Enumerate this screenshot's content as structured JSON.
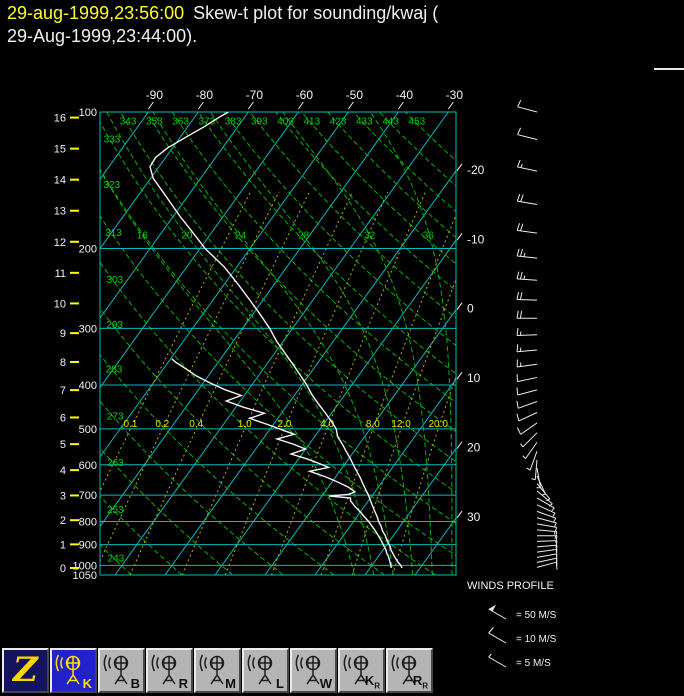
{
  "header": {
    "datetime_primary": "29-aug-1999,23:56:00",
    "datetime_color": "#ffff2e",
    "title_rest": "Skew-t plot for sounding/kwaj (",
    "title_line2": "29-Aug-1999,23:44:00)."
  },
  "chart_data": {
    "type": "skewt",
    "station": "kwaj",
    "pressure_range": [
      100,
      1050
    ],
    "pressure_levels_hpa": [
      100,
      200,
      300,
      400,
      500,
      600,
      700,
      800,
      900,
      1000,
      1050
    ],
    "km_ticks": [
      0,
      1,
      2,
      3,
      4,
      5,
      6,
      7,
      8,
      9,
      10,
      11,
      12,
      13,
      14,
      15,
      16
    ],
    "isotherms_c": [
      -90,
      -80,
      -70,
      -60,
      -50,
      -40,
      -30,
      -20,
      -10,
      0,
      10,
      20,
      30
    ],
    "dry_adiabats_k": [
      243,
      253,
      263,
      273,
      283,
      293,
      303,
      313,
      323,
      333,
      343,
      353,
      363,
      373,
      383,
      393,
      403,
      413,
      423,
      433,
      443,
      453
    ],
    "moist_adiabats_c": [
      16,
      20,
      24,
      28,
      32,
      36
    ],
    "mixing_ratio_gkg": [
      "0.1",
      "0.2",
      "0.4",
      "1.0",
      "2.0",
      "4.0",
      "8.0",
      "12.0",
      "20.0"
    ],
    "temperature_profile": [
      [
        1013,
        26.4
      ],
      [
        1000,
        25.8
      ],
      [
        985,
        24.8
      ],
      [
        970,
        24.0
      ],
      [
        955,
        23.2
      ],
      [
        940,
        22.4
      ],
      [
        925,
        21.6
      ],
      [
        910,
        21.0
      ],
      [
        895,
        20.2
      ],
      [
        880,
        19.4
      ],
      [
        860,
        18.4
      ],
      [
        840,
        17.2
      ],
      [
        820,
        16.2
      ],
      [
        800,
        15.0
      ],
      [
        780,
        14.0
      ],
      [
        760,
        12.8
      ],
      [
        740,
        11.6
      ],
      [
        720,
        10.4
      ],
      [
        700,
        9.2
      ],
      [
        680,
        7.8
      ],
      [
        660,
        6.4
      ],
      [
        640,
        5.0
      ],
      [
        620,
        3.4
      ],
      [
        600,
        1.8
      ],
      [
        580,
        0.2
      ],
      [
        560,
        -1.6
      ],
      [
        540,
        -3.4
      ],
      [
        520,
        -5.4
      ],
      [
        500,
        -6.8
      ],
      [
        480,
        -9.0
      ],
      [
        460,
        -11.4
      ],
      [
        440,
        -14.0
      ],
      [
        420,
        -16.6
      ],
      [
        400,
        -19.0
      ],
      [
        380,
        -21.8
      ],
      [
        360,
        -24.8
      ],
      [
        340,
        -28.0
      ],
      [
        320,
        -31.4
      ],
      [
        300,
        -34.6
      ],
      [
        280,
        -38.4
      ],
      [
        260,
        -42.6
      ],
      [
        240,
        -47.2
      ],
      [
        220,
        -52.4
      ],
      [
        200,
        -59.0
      ],
      [
        190,
        -62.0
      ],
      [
        180,
        -65.2
      ],
      [
        170,
        -68.6
      ],
      [
        160,
        -72.0
      ],
      [
        150,
        -75.6
      ],
      [
        140,
        -79.5
      ],
      [
        132,
        -81.8
      ],
      [
        126,
        -82.0
      ],
      [
        120,
        -81.0
      ],
      [
        114,
        -79.0
      ],
      [
        108,
        -76.8
      ],
      [
        103,
        -75.2
      ],
      [
        100,
        -74.0
      ]
    ],
    "dewpoint_profile": [
      [
        1013,
        24.2
      ],
      [
        1000,
        23.8
      ],
      [
        985,
        23.2
      ],
      [
        970,
        22.6
      ],
      [
        955,
        22.0
      ],
      [
        940,
        21.2
      ],
      [
        925,
        20.6
      ],
      [
        910,
        19.8
      ],
      [
        895,
        19.0
      ],
      [
        880,
        18.2
      ],
      [
        860,
        17.0
      ],
      [
        840,
        15.8
      ],
      [
        820,
        14.4
      ],
      [
        800,
        13.0
      ],
      [
        780,
        11.4
      ],
      [
        760,
        9.8
      ],
      [
        740,
        8.0
      ],
      [
        720,
        6.4
      ],
      [
        710,
        6.0
      ],
      [
        703,
        1.5
      ],
      [
        697,
        5.2
      ],
      [
        688,
        6.0
      ],
      [
        672,
        4.0
      ],
      [
        655,
        1.2
      ],
      [
        638,
        -2.0
      ],
      [
        620,
        -6.0
      ],
      [
        608,
        -2.8
      ],
      [
        596,
        -5.2
      ],
      [
        582,
        -8.4
      ],
      [
        568,
        -12.2
      ],
      [
        554,
        -10.0
      ],
      [
        540,
        -13.2
      ],
      [
        526,
        -17.2
      ],
      [
        514,
        -14.4
      ],
      [
        502,
        -17.6
      ],
      [
        488,
        -21.4
      ],
      [
        474,
        -25.6
      ],
      [
        462,
        -23.4
      ],
      [
        448,
        -28.4
      ],
      [
        434,
        -32.8
      ],
      [
        422,
        -30.6
      ],
      [
        410,
        -34.6
      ],
      [
        396,
        -38.6
      ],
      [
        382,
        -42.4
      ],
      [
        368,
        -45.6
      ],
      [
        356,
        -48.6
      ],
      [
        350,
        -49.8
      ]
    ],
    "wind_profile_ms": [
      [
        1010,
        75,
        9
      ],
      [
        985,
        78,
        10
      ],
      [
        960,
        80,
        11
      ],
      [
        935,
        82,
        10
      ],
      [
        910,
        85,
        9
      ],
      [
        885,
        88,
        10
      ],
      [
        860,
        90,
        11
      ],
      [
        835,
        95,
        9
      ],
      [
        810,
        100,
        8
      ],
      [
        785,
        105,
        7
      ],
      [
        760,
        110,
        7
      ],
      [
        735,
        115,
        6
      ],
      [
        710,
        120,
        6
      ],
      [
        685,
        130,
        5
      ],
      [
        660,
        140,
        5
      ],
      [
        635,
        155,
        4
      ],
      [
        610,
        170,
        5
      ],
      [
        585,
        185,
        5
      ],
      [
        560,
        200,
        6
      ],
      [
        535,
        215,
        6
      ],
      [
        510,
        225,
        7
      ],
      [
        485,
        235,
        8
      ],
      [
        460,
        245,
        9
      ],
      [
        435,
        250,
        10
      ],
      [
        410,
        255,
        11
      ],
      [
        385,
        258,
        12
      ],
      [
        360,
        262,
        13
      ],
      [
        335,
        265,
        15
      ],
      [
        310,
        268,
        17
      ],
      [
        285,
        270,
        19
      ],
      [
        260,
        272,
        21
      ],
      [
        235,
        274,
        23
      ],
      [
        210,
        276,
        25
      ],
      [
        185,
        278,
        22
      ],
      [
        160,
        280,
        18
      ],
      [
        135,
        282,
        15
      ],
      [
        115,
        284,
        12
      ],
      [
        100,
        285,
        10
      ]
    ],
    "colors": {
      "isotherm": "#00bcbc",
      "adiabat": "#00b400",
      "mixing": "#b4b400",
      "trace": "#f5f5f5",
      "barb": "#ededed",
      "tick": "#ffff00",
      "axis_text": "#f2f2f2"
    }
  },
  "winds_panel": {
    "title": "WINDS PROFILE",
    "legend": [
      {
        "speed": 50,
        "label": "= 50 M/S"
      },
      {
        "speed": 10,
        "label": "= 10 M/S"
      },
      {
        "speed": 5,
        "label": "= 5 M/S"
      }
    ]
  },
  "toolbar": {
    "buttons": [
      {
        "name": "zeb-logo",
        "label": "Z",
        "style": "logo"
      },
      {
        "name": "sounding-k",
        "label": "K",
        "selected": true
      },
      {
        "name": "sounding-b",
        "label": "B"
      },
      {
        "name": "sounding-r",
        "label": "R"
      },
      {
        "name": "sounding-m",
        "label": "M"
      },
      {
        "name": "sounding-l",
        "label": "L"
      },
      {
        "name": "sounding-w",
        "label": "W"
      },
      {
        "name": "sounding-kr",
        "label": "K",
        "sub": "R"
      },
      {
        "name": "sounding-rr",
        "label": "R",
        "sub": "R"
      }
    ]
  }
}
